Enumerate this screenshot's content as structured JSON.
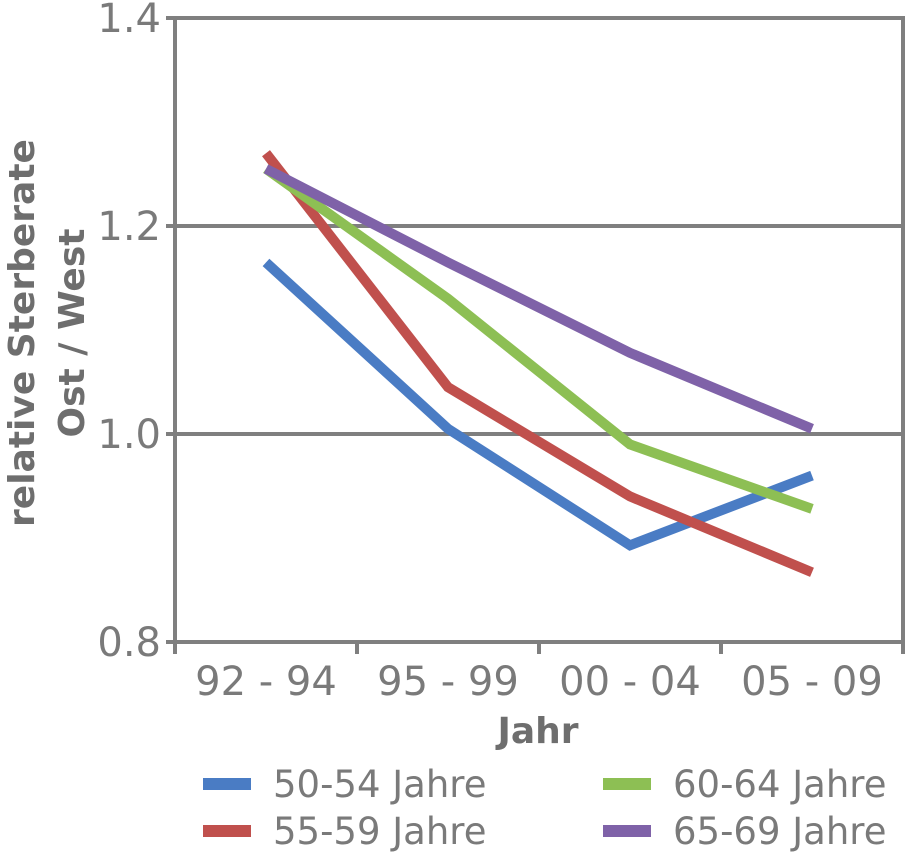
{
  "chart_data": {
    "type": "line",
    "categories": [
      "92 - 94",
      "95 - 99",
      "00 - 04",
      "05 - 09"
    ],
    "yticks": [
      "0.8",
      "1.0",
      "1.2",
      "1.4"
    ],
    "ylim": [
      0.8,
      1.4
    ],
    "ylabel_line1": "relative Sterberate",
    "ylabel_line2": "Ost / West",
    "xlabel": "Jahr",
    "grid": "horizontal at 1.0 and 1.2",
    "series": [
      {
        "name": "50-54 Jahre",
        "color": "#4a7cc4",
        "values": [
          1.165,
          1.005,
          0.893,
          0.96
        ]
      },
      {
        "name": "55-59 Jahre",
        "color": "#c0504d",
        "values": [
          1.27,
          1.045,
          0.94,
          0.867
        ]
      },
      {
        "name": "60-64 Jahre",
        "color": "#8dbf54",
        "values": [
          1.255,
          1.13,
          0.99,
          0.928
        ]
      },
      {
        "name": "65-69 Jahre",
        "color": "#7f62a8",
        "values": [
          1.255,
          1.165,
          1.078,
          1.005
        ]
      }
    ]
  }
}
